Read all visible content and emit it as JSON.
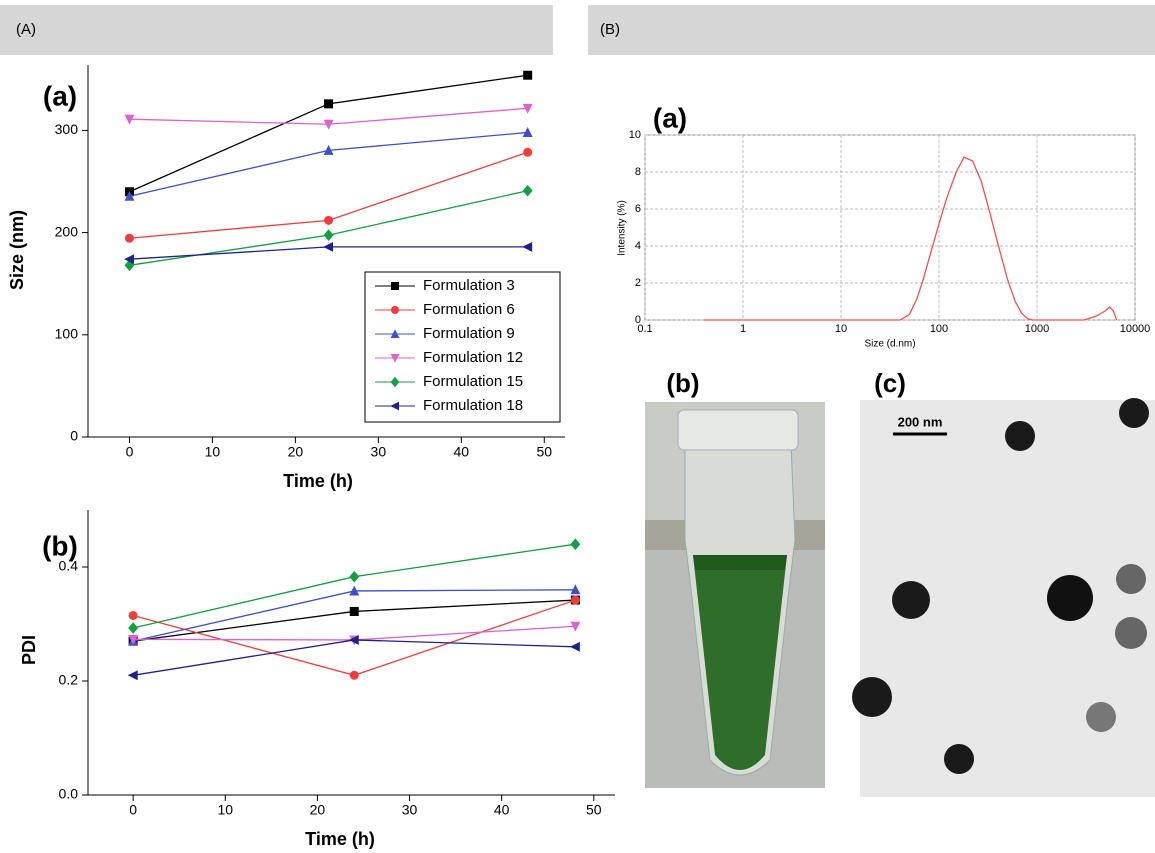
{
  "panels": [
    "(A)",
    "(B)"
  ],
  "chart_data": [
    {
      "type": "line",
      "title": "(a)",
      "x_label": "Time (h)",
      "y_label": "Size (nm)",
      "x": [
        0,
        24,
        48
      ],
      "xlim": [
        -5,
        52.5
      ],
      "ylim": [
        0,
        364
      ],
      "xticks": [
        0,
        10,
        20,
        30,
        40,
        50
      ],
      "yticks": [
        0,
        100,
        200,
        300
      ],
      "legend": "lower right",
      "series": [
        {
          "name": "Formulation 3",
          "color": "#000000",
          "marker": "square",
          "values": [
            240,
            326,
            354
          ]
        },
        {
          "name": "Formulation 6",
          "color": "#f03c3c",
          "marker": "circle",
          "values": [
            194.5,
            212,
            278.6
          ]
        },
        {
          "name": "Formulation 9",
          "color": "#3c50c8",
          "marker": "triangle-up",
          "values": [
            235.6,
            280.5,
            298
          ]
        },
        {
          "name": "Formulation 12",
          "color": "#e060d0",
          "marker": "triangle-down",
          "values": [
            311,
            306,
            321.6
          ]
        },
        {
          "name": "Formulation 15",
          "color": "#10a040",
          "marker": "diamond",
          "values": [
            168,
            197.5,
            241
          ]
        },
        {
          "name": "Formulation 18",
          "color": "#20208c",
          "marker": "triangle-left",
          "values": [
            174,
            186,
            186
          ]
        }
      ]
    },
    {
      "type": "line",
      "title": "(b)",
      "x_label": "Time (h)",
      "y_label": "PDI",
      "x": [
        0,
        24,
        48
      ],
      "xlim": [
        -4.9,
        52.3
      ],
      "ylim": [
        0,
        0.5
      ],
      "xticks": [
        0,
        10,
        20,
        30,
        40,
        50
      ],
      "yticks": [
        {
          "value": 0,
          "label": "0.0"
        },
        0.2,
        0.4
      ],
      "series": [
        {
          "name": "Formulation 3",
          "color": "#000000",
          "marker": "square",
          "values": [
            0.27,
            0.322,
            0.342
          ]
        },
        {
          "name": "Formulation 6",
          "color": "#f03c3c",
          "marker": "circle",
          "values": [
            0.315,
            0.21,
            0.342
          ]
        },
        {
          "name": "Formulation 9",
          "color": "#3c50c8",
          "marker": "triangle-up",
          "values": [
            0.27,
            0.358,
            0.36
          ]
        },
        {
          "name": "Formulation 12",
          "color": "#e060d0",
          "marker": "triangle-down",
          "values": [
            0.273,
            0.272,
            0.296
          ]
        },
        {
          "name": "Formulation 15",
          "color": "#10a040",
          "marker": "diamond",
          "values": [
            0.293,
            0.383,
            0.44
          ]
        },
        {
          "name": "Formulation 18",
          "color": "#20208c",
          "marker": "triangle-left",
          "values": [
            0.21,
            0.272,
            0.26
          ]
        }
      ]
    },
    {
      "type": "line",
      "title": "(a)",
      "x_label": "Size (d.nm)",
      "y_label": "Intensity (%)",
      "x_log": true,
      "grid": true,
      "x": [
        0.4,
        1,
        10,
        40,
        50,
        60,
        70,
        80,
        100,
        120,
        150,
        180,
        220,
        270,
        330,
        400,
        500,
        600,
        700,
        800,
        900,
        1000,
        2000,
        3000,
        4000,
        5000,
        5500,
        6000,
        6500
      ],
      "values": [
        0,
        0,
        0,
        0,
        0.3,
        1.2,
        2.3,
        3.4,
        5.2,
        6.6,
        8.0,
        8.8,
        8.6,
        7.5,
        5.8,
        4.1,
        2.2,
        1.0,
        0.35,
        0.08,
        0,
        0,
        0,
        0,
        0.2,
        0.5,
        0.7,
        0.5,
        0
      ],
      "color": "#f05050",
      "xlim": [
        0.1,
        10000
      ],
      "ylim": [
        0,
        10
      ],
      "xticks": [
        0.1,
        1,
        10,
        100,
        1000,
        10000
      ],
      "yticks": [
        0,
        2,
        4,
        6,
        8,
        10
      ]
    }
  ],
  "images": [
    {
      "label": "(b)"
    },
    {
      "label": "(c)",
      "scale_bar": "200 nm"
    }
  ]
}
